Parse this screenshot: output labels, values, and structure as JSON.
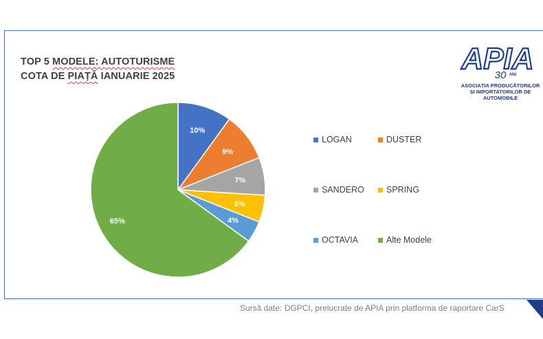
{
  "title": {
    "line1_prefix": "TOP 5 ",
    "line1_ul": "MODELE: AUTOTURISME",
    "line2_pre": "COTA DE ",
    "line2_ul": "PIAȚĂ",
    "line2_post": " IANUARIE 2025"
  },
  "logo": {
    "text": "APIA",
    "years": "30",
    "years_suffix": "ANI",
    "tagline": "ASOCIAȚIA PRODUCĂTORILOR ȘI IMPORTATORILOR DE AUTOMOBILE"
  },
  "source": "Sursă date: DGPCI, prelucrate de APIA prin platforma de raportare CarS",
  "colors": {
    "frame": "#4a6fb5",
    "brand": "#1f3c88"
  },
  "chart_data": {
    "type": "pie",
    "title": "TOP 5 MODELE: AUTOTURISME COTA DE PIAȚĂ IANUARIE 2025",
    "legend_position": "right",
    "categories": [
      "LOGAN",
      "DUSTER",
      "SANDERO",
      "SPRING",
      "OCTAVIA",
      "Alte Modele"
    ],
    "values": [
      10,
      9,
      7,
      5,
      4,
      65
    ],
    "labels": [
      "10%",
      "9%",
      "7%",
      "5%",
      "4%",
      "65%"
    ],
    "colors": [
      "#4472c4",
      "#ed7d31",
      "#a5a5a5",
      "#ffc000",
      "#5b9bd5",
      "#70ad47"
    ]
  }
}
